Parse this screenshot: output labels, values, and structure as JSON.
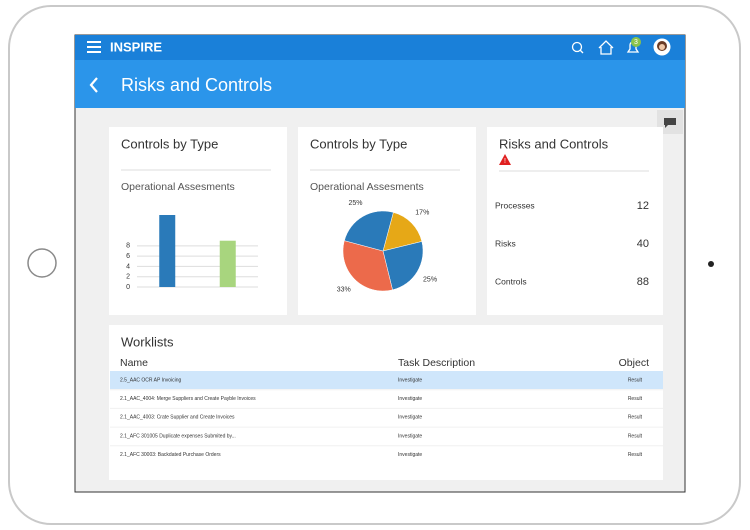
{
  "app": {
    "name": "INSPIRE",
    "notification_count": "3"
  },
  "page_title": "Risks and Controls",
  "chart_data": [
    {
      "type": "bar",
      "title": "Controls by Type",
      "subtitle": "Operational Assesments",
      "categories": [
        null,
        null
      ],
      "series": [
        {
          "name": null,
          "values": [
            14,
            9
          ]
        }
      ],
      "colors": [
        "#2a7ab9",
        "#a8d57e"
      ],
      "ylim": [
        0,
        14
      ],
      "yticks": [
        0,
        2,
        4,
        6,
        8
      ],
      "grid": true
    },
    {
      "type": "pie",
      "title": "Controls by Type",
      "subtitle": "Operational Assesments",
      "values": [
        17,
        25,
        33,
        25
      ],
      "value_labels": [
        "17%",
        "25%",
        "33%",
        "25%"
      ],
      "colors": [
        "#e6a817",
        "#2a7ab9",
        "#ec6a4b",
        "#2a7ab9"
      ]
    }
  ],
  "summary": {
    "title": "Risks and Controls",
    "rows": [
      [
        "Processes",
        "12"
      ],
      [
        "Risks",
        "40"
      ],
      [
        "Controls",
        "88"
      ]
    ]
  },
  "worklist": {
    "title": "Worklists",
    "columns": [
      "Name",
      "Task Description",
      "Object"
    ],
    "rows": [
      [
        "2.5_AAC OCR AP Invoicing",
        "Investigate",
        "Result"
      ],
      [
        "2.1_AAC_4004: Merge Suppliers and Create Payble Invoices",
        "Investigate",
        "Result"
      ],
      [
        "2.1_AAC_4003: Crate Supplier and Create Invoices",
        "Investigate",
        "Result"
      ],
      [
        "2.1_AFC 301005 Duplicate expenses Submited by...",
        "Investigate",
        "Result"
      ],
      [
        "2.1_AFC 30003: Backdated Purchase Orders",
        "Investigate",
        "Result"
      ]
    ]
  }
}
